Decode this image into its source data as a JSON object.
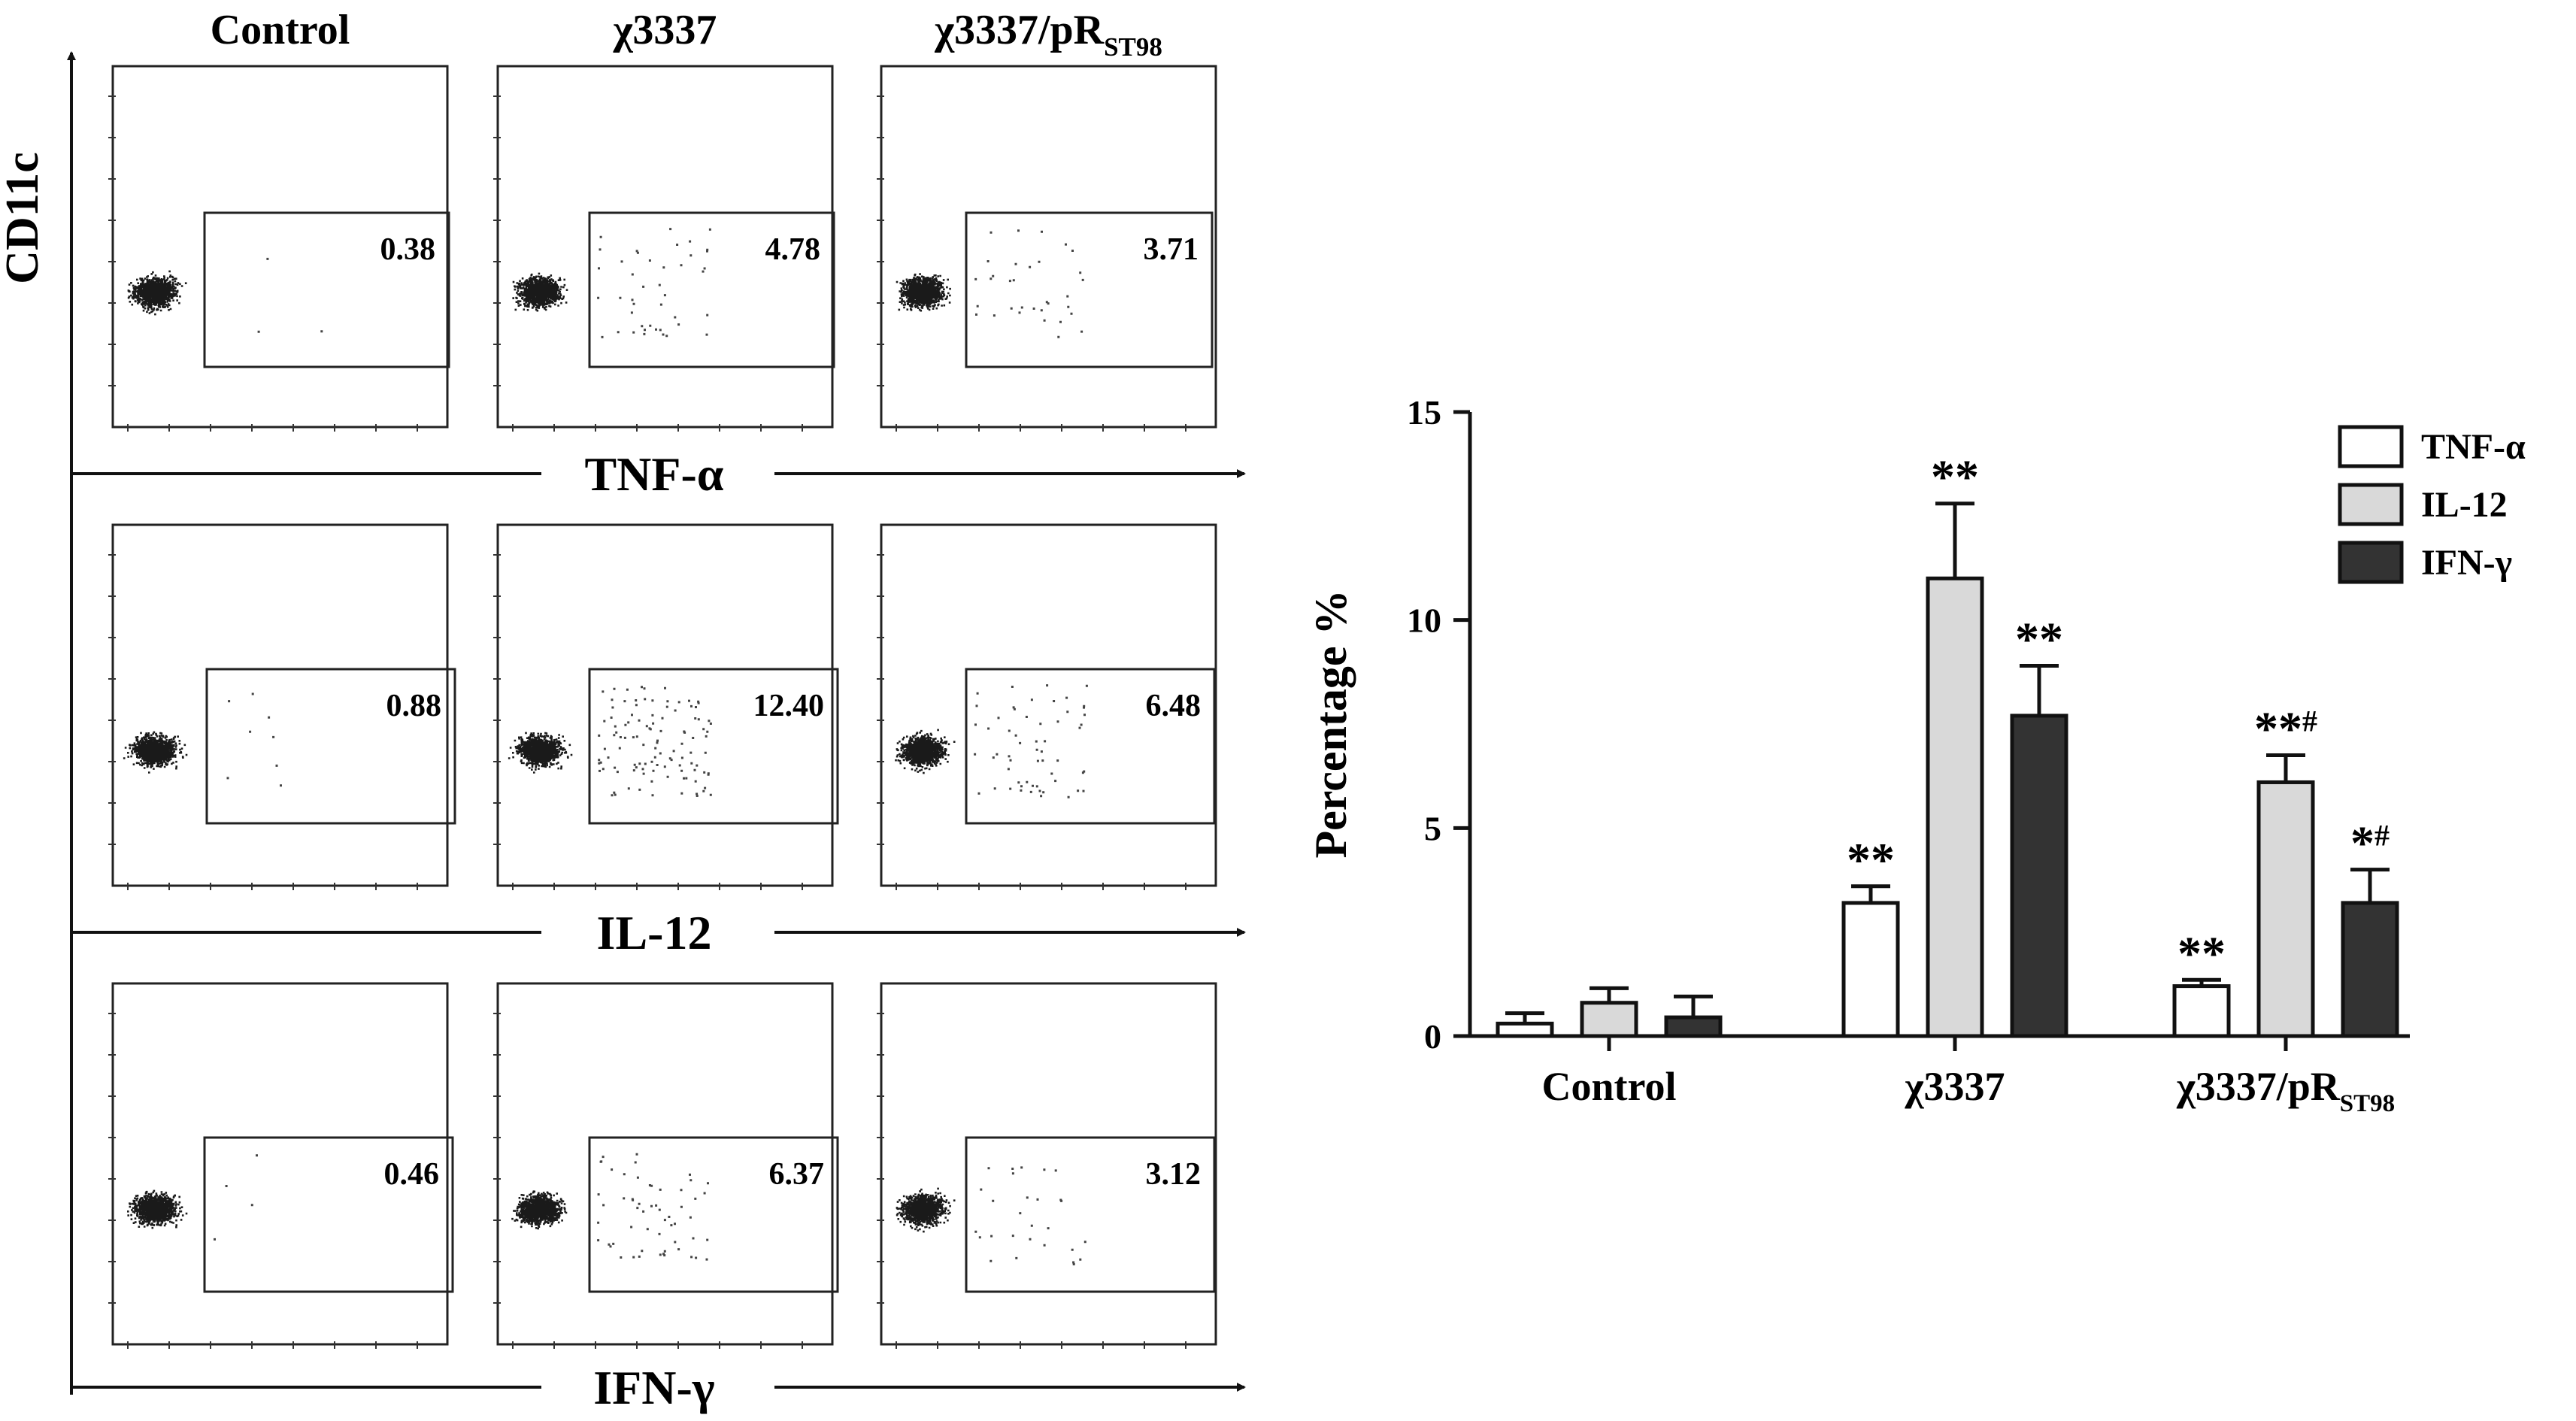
{
  "flow_panel": {
    "columns": [
      {
        "label": "Control",
        "sub": ""
      },
      {
        "label": "χ3337",
        "sub": ""
      },
      {
        "label": "χ3337/pR",
        "sub": "ST98"
      }
    ],
    "y_axis_label": "CD11c",
    "rows": [
      {
        "marker": "TNF-α",
        "values": [
          "0.38",
          "4.78",
          "3.71"
        ]
      },
      {
        "marker": "IL-12",
        "values": [
          "0.88",
          "12.40",
          "6.48"
        ]
      },
      {
        "marker": "IFN-γ",
        "values": [
          "0.46",
          "6.37",
          "3.12"
        ]
      }
    ]
  },
  "chart_data": {
    "type": "bar",
    "title": "",
    "xlabel": "",
    "ylabel": "Percentage %",
    "ylim": [
      0,
      15
    ],
    "yticks": [
      "0",
      "5",
      "10",
      "15"
    ],
    "grid": false,
    "legend_position": "top-right",
    "categories": [
      {
        "label": "Control",
        "sub": ""
      },
      {
        "label": "χ3337",
        "sub": ""
      },
      {
        "label": "χ3337/pR",
        "sub": "ST98"
      }
    ],
    "series": [
      {
        "name": "TNF-α",
        "color": "#ffffff",
        "values": [
          0.3,
          3.2,
          1.2
        ],
        "errors": [
          0.25,
          0.4,
          0.15
        ],
        "annotations": [
          "",
          "**",
          "**"
        ]
      },
      {
        "name": "IL-12",
        "color": "#d9d9d9",
        "values": [
          0.8,
          11.0,
          6.1
        ],
        "errors": [
          0.35,
          1.8,
          0.65
        ],
        "annotations": [
          "",
          "**",
          "**#"
        ]
      },
      {
        "name": "IFN-γ",
        "color": "#333333",
        "values": [
          0.45,
          7.7,
          3.2
        ],
        "errors": [
          0.5,
          1.2,
          0.8
        ],
        "annotations": [
          "",
          "**",
          "*#"
        ]
      }
    ]
  }
}
